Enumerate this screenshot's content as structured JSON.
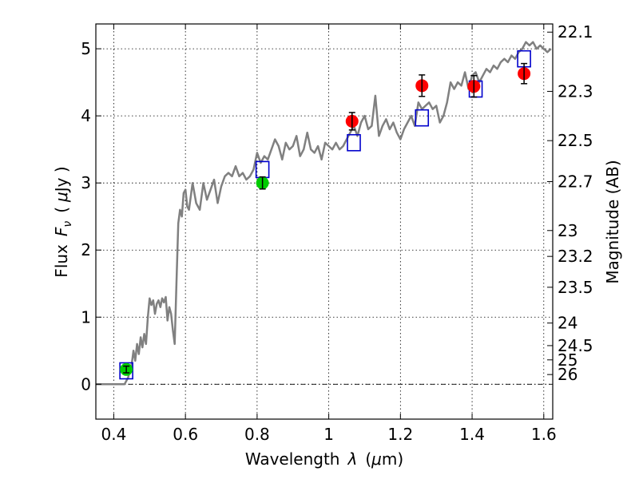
{
  "chart_data": {
    "type": "scatter",
    "xlabel_text": "Wavelength",
    "xlabel_symbol": "λ",
    "xlabel_unit_open": "(",
    "xlabel_unit_mu": "μ",
    "xlabel_unit_rest": "m)",
    "ylabel_text": "Flux",
    "ylabel_symbol": "F",
    "ylabel_sub": "ν",
    "ylabel_unit_open": "(",
    "ylabel_unit_mu": "μ",
    "ylabel_unit_rest": "Jy )",
    "y2label": "Magnitude (AB)",
    "xlim": [
      0.35,
      1.625
    ],
    "ylim": [
      -0.52,
      5.37
    ],
    "x_ticks": [
      0.4,
      0.6,
      0.8,
      1.0,
      1.2,
      1.4,
      1.6
    ],
    "x_tick_labels": [
      "0.4",
      "0.6",
      "0.8",
      "1",
      "1.2",
      "1.4",
      "1.6"
    ],
    "y_ticks": [
      0,
      1,
      2,
      3,
      4,
      5
    ],
    "y_tick_labels": [
      "0",
      "1",
      "2",
      "3",
      "4",
      "5"
    ],
    "y2_ticks": [
      {
        "label": "22.1",
        "mag": 22.1
      },
      {
        "label": "22.3",
        "mag": 22.3
      },
      {
        "label": "22.5",
        "mag": 22.5
      },
      {
        "label": "22.7",
        "mag": 22.7
      },
      {
        "label": "23",
        "mag": 23.0
      },
      {
        "label": "23.2",
        "mag": 23.2
      },
      {
        "label": "23.5",
        "mag": 23.5
      },
      {
        "label": "24",
        "mag": 24.0
      },
      {
        "label": "24.5",
        "mag": 24.5
      },
      {
        "label": "25",
        "mag": 25.0
      },
      {
        "label": "26",
        "mag": 26.0
      }
    ],
    "grid": true,
    "zero_line": true,
    "colors": {
      "model": "#808080",
      "red_points": "#ff0000",
      "green_points": "#00cc00",
      "model_boxes": "#0000cc",
      "grid": "#000000",
      "errorbar": "#000000"
    },
    "model_spectrum": {
      "x": [
        0.35,
        0.43,
        0.44,
        0.45,
        0.455,
        0.46,
        0.465,
        0.47,
        0.475,
        0.48,
        0.485,
        0.49,
        0.495,
        0.5,
        0.505,
        0.51,
        0.515,
        0.52,
        0.525,
        0.53,
        0.535,
        0.54,
        0.545,
        0.55,
        0.555,
        0.56,
        0.565,
        0.57,
        0.575,
        0.58,
        0.585,
        0.59,
        0.595,
        0.6,
        0.605,
        0.61,
        0.62,
        0.63,
        0.64,
        0.65,
        0.66,
        0.67,
        0.68,
        0.69,
        0.7,
        0.71,
        0.72,
        0.73,
        0.74,
        0.75,
        0.76,
        0.77,
        0.78,
        0.79,
        0.8,
        0.81,
        0.82,
        0.83,
        0.84,
        0.85,
        0.86,
        0.87,
        0.88,
        0.89,
        0.9,
        0.91,
        0.92,
        0.93,
        0.94,
        0.95,
        0.96,
        0.97,
        0.98,
        0.99,
        1.0,
        1.01,
        1.02,
        1.03,
        1.04,
        1.05,
        1.06,
        1.07,
        1.08,
        1.09,
        1.1,
        1.11,
        1.12,
        1.13,
        1.14,
        1.15,
        1.16,
        1.17,
        1.18,
        1.19,
        1.2,
        1.21,
        1.22,
        1.23,
        1.24,
        1.25,
        1.26,
        1.27,
        1.28,
        1.29,
        1.3,
        1.31,
        1.32,
        1.33,
        1.34,
        1.35,
        1.36,
        1.37,
        1.38,
        1.39,
        1.4,
        1.41,
        1.42,
        1.43,
        1.44,
        1.45,
        1.46,
        1.47,
        1.48,
        1.49,
        1.5,
        1.51,
        1.52,
        1.53,
        1.54,
        1.55,
        1.56,
        1.57,
        1.58,
        1.59,
        1.6,
        1.61,
        1.62
      ],
      "y": [
        0.0,
        0.0,
        0.1,
        0.3,
        0.5,
        0.35,
        0.6,
        0.45,
        0.7,
        0.55,
        0.75,
        0.6,
        1.0,
        1.28,
        1.18,
        1.25,
        1.05,
        1.2,
        1.25,
        1.15,
        1.28,
        1.22,
        1.3,
        0.95,
        1.15,
        1.05,
        0.8,
        0.6,
        1.5,
        2.4,
        2.6,
        2.5,
        2.85,
        2.9,
        2.65,
        2.6,
        3.0,
        2.7,
        2.6,
        3.0,
        2.75,
        2.9,
        3.05,
        2.7,
        2.95,
        3.1,
        3.15,
        3.1,
        3.25,
        3.1,
        3.15,
        3.05,
        3.1,
        3.2,
        3.45,
        3.3,
        3.4,
        3.35,
        3.5,
        3.65,
        3.55,
        3.35,
        3.6,
        3.5,
        3.55,
        3.7,
        3.4,
        3.5,
        3.75,
        3.5,
        3.45,
        3.55,
        3.35,
        3.6,
        3.55,
        3.5,
        3.6,
        3.5,
        3.55,
        3.65,
        3.75,
        3.85,
        3.7,
        3.9,
        4.0,
        3.8,
        3.85,
        4.3,
        3.7,
        3.85,
        3.95,
        3.8,
        3.9,
        3.75,
        3.65,
        3.8,
        3.9,
        4.0,
        3.85,
        4.2,
        4.1,
        4.15,
        4.2,
        4.1,
        4.15,
        3.9,
        4.0,
        4.2,
        4.5,
        4.4,
        4.5,
        4.45,
        4.65,
        4.4,
        4.6,
        4.65,
        4.5,
        4.6,
        4.7,
        4.65,
        4.75,
        4.7,
        4.8,
        4.85,
        4.8,
        4.9,
        4.85,
        4.95,
        5.0,
        5.1,
        5.05,
        5.1,
        5.0,
        5.05,
        5.0,
        4.95,
        5.0
      ]
    },
    "red_points": [
      {
        "x": 1.065,
        "y": 3.92,
        "err": 0.13
      },
      {
        "x": 1.26,
        "y": 4.45,
        "err": 0.16
      },
      {
        "x": 1.405,
        "y": 4.44,
        "err": 0.16
      },
      {
        "x": 1.545,
        "y": 4.63,
        "err": 0.15
      }
    ],
    "green_points": [
      {
        "x": 0.435,
        "y": 0.22,
        "err": 0.05
      },
      {
        "x": 0.815,
        "y": 3.0,
        "err": 0.09
      }
    ],
    "model_boxes": [
      {
        "x": 0.435,
        "y": 0.2
      },
      {
        "x": 0.815,
        "y": 3.2
      },
      {
        "x": 1.07,
        "y": 3.6
      },
      {
        "x": 1.26,
        "y": 3.97
      },
      {
        "x": 1.41,
        "y": 4.4
      },
      {
        "x": 1.545,
        "y": 4.85
      }
    ]
  }
}
